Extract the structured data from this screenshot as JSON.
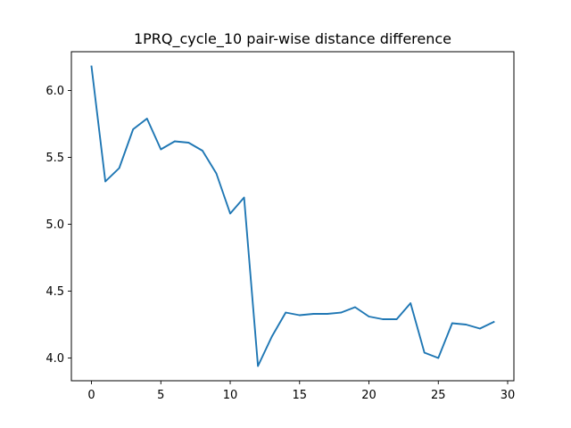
{
  "chart_data": {
    "type": "line",
    "title": "1PRQ_cycle_10 pair-wise distance difference",
    "xlabel": "",
    "ylabel": "",
    "xlim": [
      -1.45,
      30.45
    ],
    "ylim": [
      3.83,
      6.29
    ],
    "xticks": [
      0,
      5,
      10,
      15,
      20,
      25,
      30
    ],
    "yticks": [
      4.0,
      4.5,
      5.0,
      5.5,
      6.0
    ],
    "xtick_labels": [
      "0",
      "5",
      "10",
      "15",
      "20",
      "25",
      "30"
    ],
    "ytick_labels": [
      "4.0",
      "4.5",
      "5.0",
      "5.5",
      "6.0"
    ],
    "grid": false,
    "legend": false,
    "series": [
      {
        "color": "#1f77b4",
        "x": [
          0,
          1,
          2,
          3,
          4,
          5,
          6,
          7,
          8,
          9,
          10,
          11,
          12,
          13,
          14,
          15,
          16,
          17,
          18,
          19,
          20,
          21,
          22,
          23,
          24,
          25,
          26,
          27,
          28,
          29
        ],
        "y": [
          6.18,
          5.32,
          5.42,
          5.71,
          5.79,
          5.56,
          5.62,
          5.61,
          5.55,
          5.38,
          5.08,
          5.2,
          3.94,
          4.16,
          4.34,
          4.32,
          4.33,
          4.33,
          4.34,
          4.38,
          4.31,
          4.29,
          4.29,
          4.41,
          4.04,
          4.0,
          4.26,
          4.25,
          4.22,
          4.27
        ]
      }
    ]
  }
}
